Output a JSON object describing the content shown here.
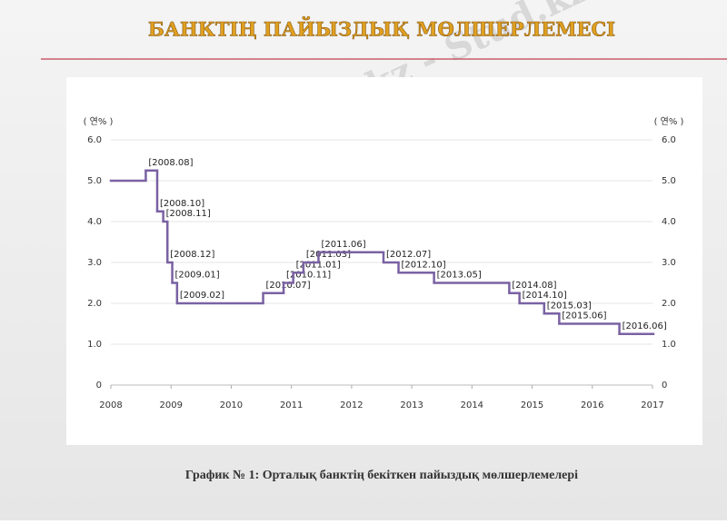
{
  "slide_title": "БАНКТІҢ ПАЙЫЗДЫҚ МӨЛШЕРЛЕМЕСІ",
  "watermark": "Stud.kz - Stud.kz",
  "caption": "График № 1: Орталық банктің бекіткен пайыздық мөлшерлемелері",
  "chart_data": {
    "type": "step",
    "y_unit_label": "( 연% )",
    "y2_unit_label": "( 연% )",
    "x": [
      2008.0,
      2008.58,
      2008.77,
      2008.87,
      2008.94,
      2009.02,
      2009.1,
      2010.53,
      2010.87,
      2011.03,
      2011.2,
      2011.45,
      2012.53,
      2012.78,
      2013.37,
      2014.62,
      2014.79,
      2015.2,
      2015.45,
      2016.45,
      2017.0
    ],
    "point_labels": [
      null,
      "[2008.08]",
      "[2008.10]",
      "[2008.11]",
      "[2008.12]",
      "[2009.01]",
      "[2009.02]",
      "[2010.07]",
      "[2010.11]",
      "[2011.01]",
      "[2011.03]",
      "[2011.06]",
      "[2012.07]",
      "[2012.10]",
      "[2013.05]",
      "[2014.08]",
      "[2014.10]",
      "[2015.03]",
      "[2015.06]",
      "[2016.06]",
      null
    ],
    "values": [
      5.0,
      5.25,
      4.25,
      4.0,
      3.0,
      2.5,
      2.0,
      2.25,
      2.5,
      2.75,
      3.0,
      3.25,
      3.0,
      2.75,
      2.5,
      2.25,
      2.0,
      1.75,
      1.5,
      1.25,
      1.25
    ],
    "color": "#7a62a3",
    "xlim": [
      2008,
      2017
    ],
    "xticks": [
      2008,
      2009,
      2010,
      2011,
      2012,
      2013,
      2014,
      2015,
      2016,
      2017
    ],
    "ylim": [
      0,
      6
    ],
    "yticks": [
      0,
      {
        "value": 1,
        "label": "1.0"
      },
      {
        "value": 2,
        "label": "2.0"
      },
      {
        "value": 3,
        "label": "3.0"
      },
      {
        "value": 4,
        "label": "4.0"
      },
      {
        "value": 5,
        "label": "5.0"
      },
      {
        "value": 6,
        "label": "6.0"
      }
    ],
    "grid": true
  }
}
